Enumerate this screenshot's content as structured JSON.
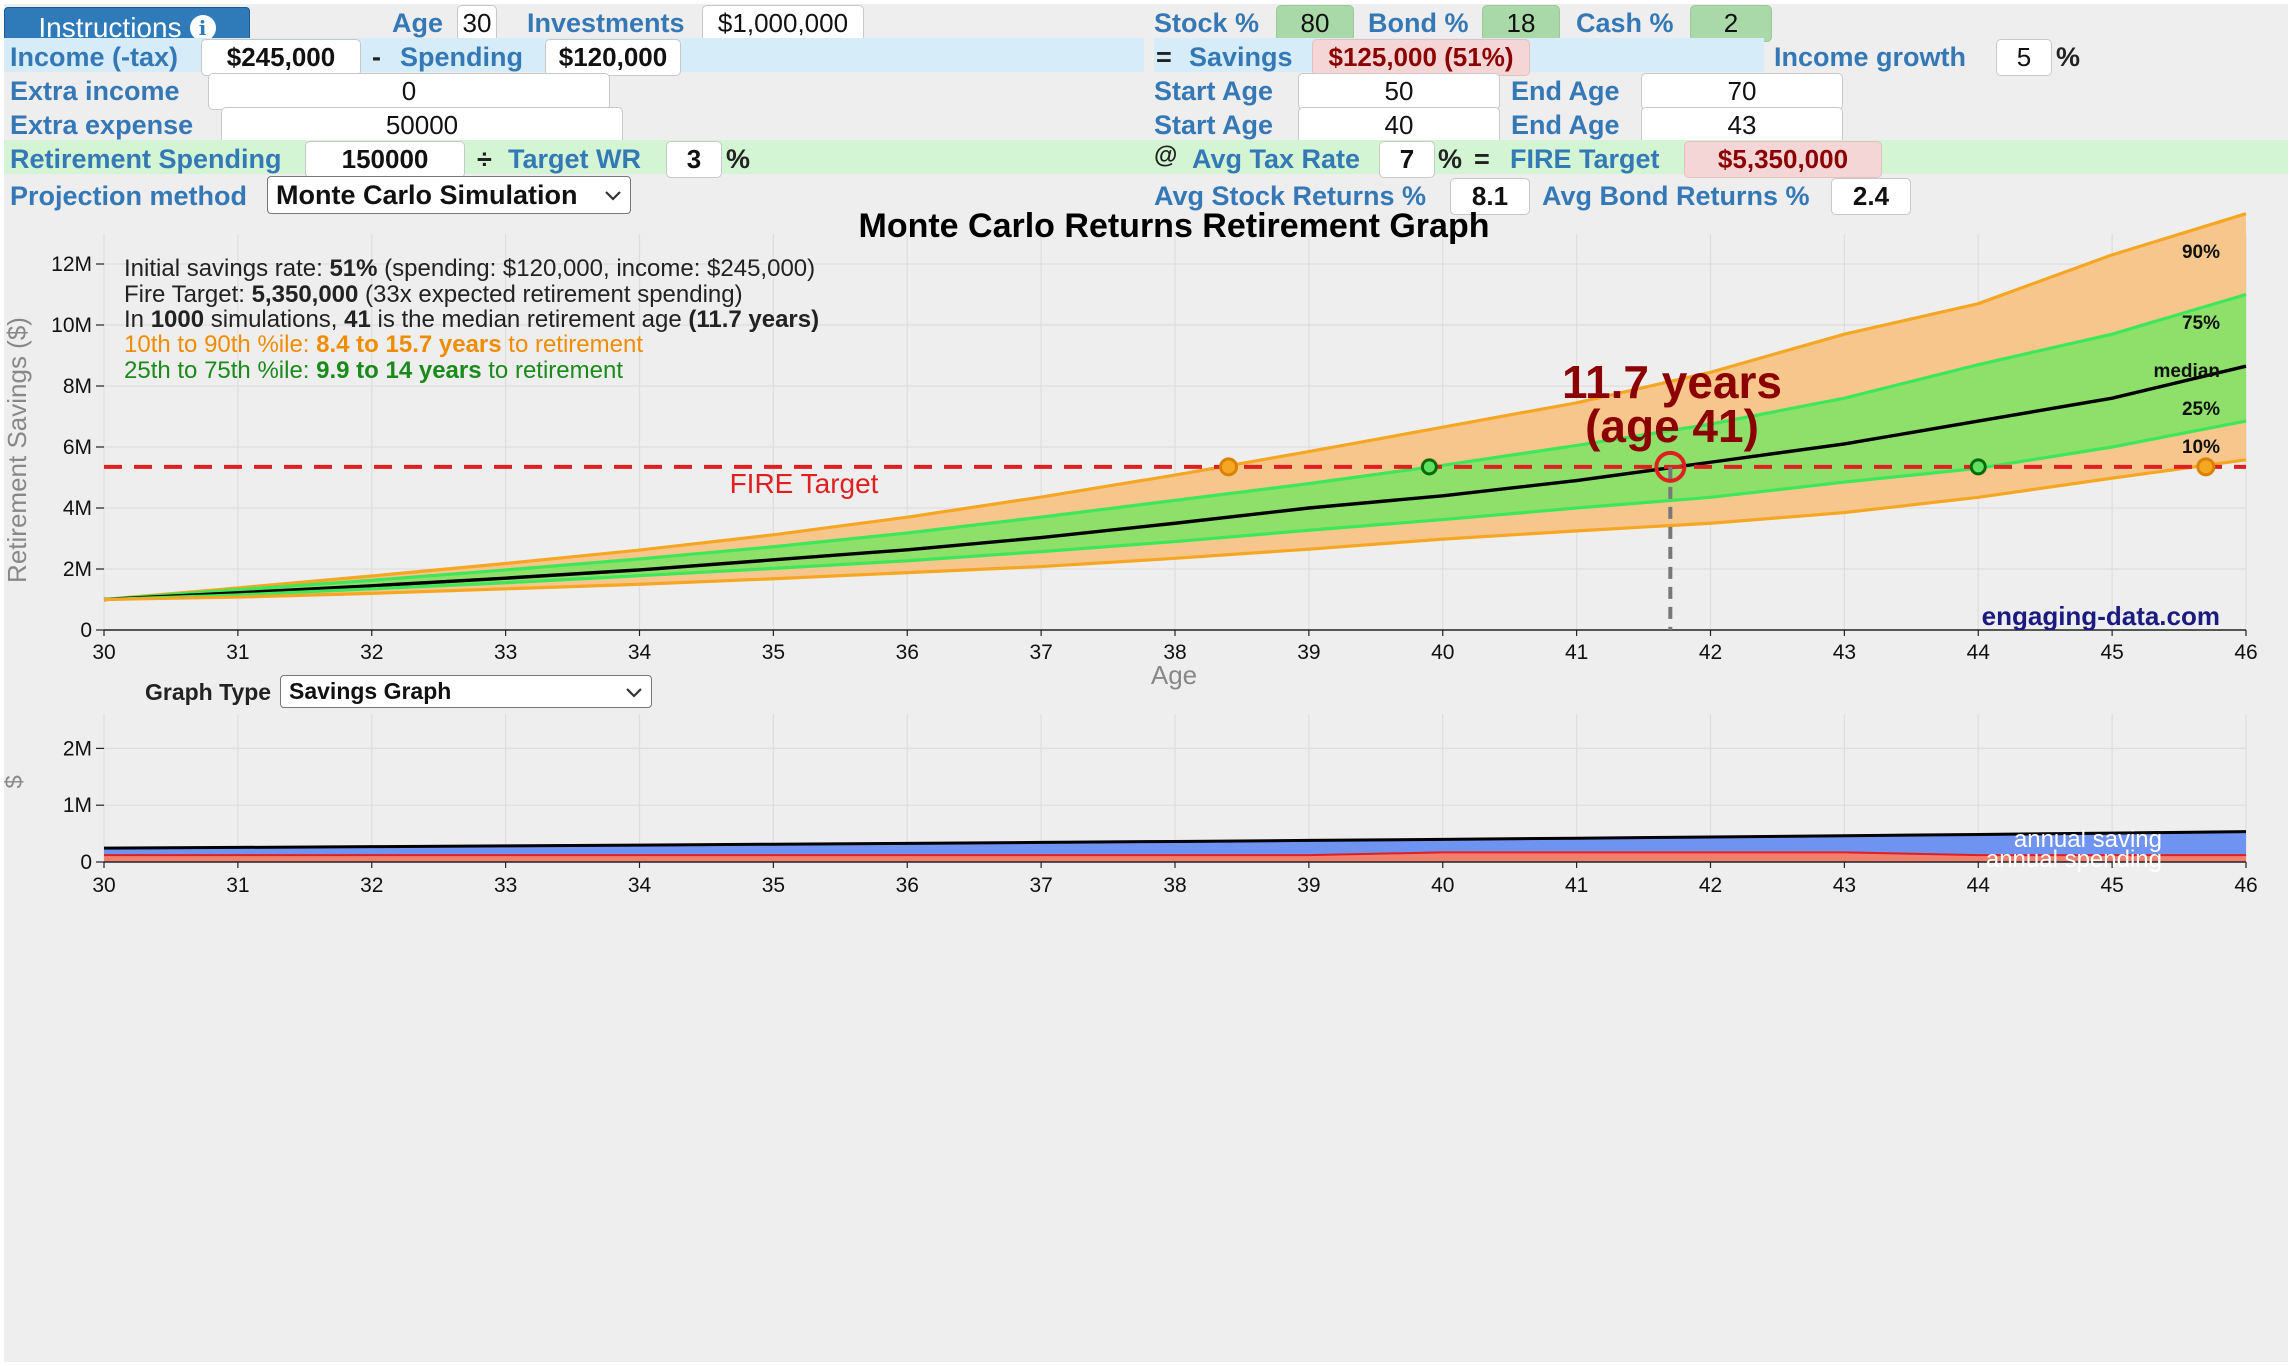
{
  "header": {
    "instructions_label": "Instructions",
    "age_label": "Age",
    "age_value": "30",
    "investments_label": "Investments",
    "investments_value": "$1,000,000",
    "stock_label": "Stock %",
    "stock_value": "80",
    "bond_label": "Bond %",
    "bond_value": "18",
    "cash_label": "Cash %",
    "cash_value": "2"
  },
  "income_row": {
    "income_label": "Income (-tax)",
    "income_value": "$245,000",
    "minus": "-",
    "spending_label": "Spending",
    "spending_value": "$120,000",
    "equals": "=",
    "savings_label": "Savings",
    "savings_value": "$125,000 (51%)",
    "growth_label": "Income growth",
    "growth_value": "5",
    "growth_unit": "%"
  },
  "extra_income": {
    "label": "Extra income",
    "value": "0",
    "start_label": "Start Age",
    "start_value": "50",
    "end_label": "End Age",
    "end_value": "70"
  },
  "extra_expense": {
    "label": "Extra expense",
    "value": "50000",
    "start_label": "Start Age",
    "start_value": "40",
    "end_label": "End Age",
    "end_value": "43"
  },
  "retirement_row": {
    "spending_label": "Retirement Spending",
    "spending_value": "150000",
    "divide": "÷",
    "wr_label": "Target WR",
    "wr_value": "3",
    "wr_unit": "%",
    "at": "@",
    "tax_label": "Avg Tax Rate",
    "tax_value": "7",
    "tax_unit": "%",
    "eq": "=",
    "fire_label": "FIRE Target",
    "fire_value": "$5,350,000"
  },
  "projection_row": {
    "label": "Projection method",
    "method_value": "Monte Carlo Simulation",
    "stock_ret_label": "Avg Stock Returns %",
    "stock_ret_value": "8.1",
    "bond_ret_label": "Avg Bond Returns %",
    "bond_ret_value": "2.4"
  },
  "graph_type": {
    "label": "Graph Type",
    "value": "Savings Graph"
  },
  "colors": {
    "accent": "#3578b6",
    "band_outer": "#f7c68c",
    "band_inner": "#8ee06b",
    "line_outer": "#f5a623",
    "line_inner": "#3ee65a",
    "fire_line": "#e02020",
    "annotation": "#8b0000",
    "saving_fill": "#6e93f0",
    "spending_fill": "#f0806e"
  },
  "chart_data": [
    {
      "type": "area",
      "title": "Monte Carlo Returns Retirement Graph",
      "xlabel": "Age",
      "ylabel": "Retirement Savings ($)",
      "xlim": [
        30,
        46
      ],
      "ylim": [
        0,
        12000000
      ],
      "x_ticks": [
        "30",
        "31",
        "32",
        "33",
        "34",
        "35",
        "36",
        "37",
        "38",
        "39",
        "40",
        "41",
        "42",
        "43",
        "44",
        "45",
        "46"
      ],
      "y_ticks": [
        {
          "v": 0,
          "label": "0"
        },
        {
          "v": 2000000,
          "label": "2M"
        },
        {
          "v": 4000000,
          "label": "4M"
        },
        {
          "v": 6000000,
          "label": "6M"
        },
        {
          "v": 8000000,
          "label": "8M"
        },
        {
          "v": 10000000,
          "label": "10M"
        },
        {
          "v": 12000000,
          "label": "12M"
        }
      ],
      "grid": true,
      "x": [
        30,
        31,
        32,
        33,
        34,
        35,
        36,
        37,
        38,
        39,
        40,
        41,
        42,
        43,
        44,
        45,
        46
      ],
      "series": [
        {
          "name": "90%",
          "values": [
            1.0,
            1.38,
            1.77,
            2.18,
            2.62,
            3.12,
            3.7,
            4.36,
            5.08,
            5.85,
            6.65,
            7.45,
            8.45,
            9.7,
            10.7,
            12.3,
            13.65
          ]
        },
        {
          "name": "75%",
          "values": [
            1.0,
            1.32,
            1.63,
            1.97,
            2.33,
            2.73,
            3.18,
            3.7,
            4.25,
            4.8,
            5.4,
            6.05,
            6.75,
            7.6,
            8.7,
            9.7,
            11.0
          ]
        },
        {
          "name": "median",
          "values": [
            1.0,
            1.22,
            1.45,
            1.7,
            1.97,
            2.3,
            2.63,
            3.03,
            3.5,
            4.0,
            4.4,
            4.9,
            5.5,
            6.1,
            6.85,
            7.6,
            8.65
          ]
        },
        {
          "name": "25%",
          "values": [
            1.0,
            1.15,
            1.35,
            1.55,
            1.78,
            2.02,
            2.27,
            2.57,
            2.9,
            3.27,
            3.62,
            4.0,
            4.35,
            4.85,
            5.3,
            6.0,
            6.85
          ]
        },
        {
          "name": "10%",
          "values": [
            1.0,
            1.08,
            1.2,
            1.35,
            1.5,
            1.68,
            1.88,
            2.08,
            2.35,
            2.65,
            2.98,
            3.25,
            3.5,
            3.85,
            4.35,
            4.98,
            5.58
          ]
        }
      ],
      "units": "millions USD",
      "fire_target": 5350000,
      "fire_label": "FIRE Target",
      "crossings": [
        {
          "series": "90%",
          "age": 38.4
        },
        {
          "series": "75%",
          "age": 39.9
        },
        {
          "series": "median",
          "age": 41.7
        },
        {
          "series": "25%",
          "age": 44
        },
        {
          "series": "10%",
          "age": 45.7
        }
      ],
      "annotation_line1": "11.7 years",
      "annotation_line2": "(age 41)",
      "watermark": "engaging-data.com",
      "info": {
        "l1_a": "Initial savings rate: ",
        "l1_b": "51%",
        "l1_c": " (spending: $120,000, income: $245,000)",
        "l2_a": "Fire Target: ",
        "l2_b": "5,350,000",
        "l2_c": " (33x expected retirement spending)",
        "l3_a": "In ",
        "l3_b": "1000",
        "l3_c": " simulations, ",
        "l3_d": "41",
        "l3_e": " is the median retirement age ",
        "l3_f": "(11.7 years)",
        "l4_a": "10th to 90th %ile: ",
        "l4_b": "8.4 to 15.7 years",
        "l4_c": " to retirement",
        "l5_a": "25th to 75th %ile: ",
        "l5_b": "9.9 to 14 years",
        "l5_c": " to retirement"
      }
    },
    {
      "type": "area",
      "ylabel": "$",
      "xlim": [
        30,
        46
      ],
      "ylim": [
        0,
        2500000
      ],
      "x_ticks": [
        "30",
        "31",
        "32",
        "33",
        "34",
        "35",
        "36",
        "37",
        "38",
        "39",
        "40",
        "41",
        "42",
        "43",
        "44",
        "45",
        "46"
      ],
      "y_ticks": [
        {
          "v": 0,
          "label": "0"
        },
        {
          "v": 1000000,
          "label": "1M"
        },
        {
          "v": 2000000,
          "label": "2M"
        }
      ],
      "grid": true,
      "x": [
        30,
        31,
        32,
        33,
        34,
        35,
        36,
        37,
        38,
        39,
        40,
        41,
        42,
        43,
        44,
        45,
        46
      ],
      "series": [
        {
          "name": "annual saving",
          "values": [
            245000,
            257000,
            270000,
            284000,
            298000,
            313000,
            328000,
            345000,
            362000,
            380000,
            399000,
            419000,
            440000,
            462000,
            485000,
            509000,
            535000
          ]
        },
        {
          "name": "annual spending",
          "values": [
            120000,
            120000,
            120000,
            120000,
            120000,
            120000,
            120000,
            120000,
            120000,
            120000,
            170000,
            170000,
            170000,
            170000,
            120000,
            120000,
            120000
          ]
        }
      ]
    }
  ]
}
